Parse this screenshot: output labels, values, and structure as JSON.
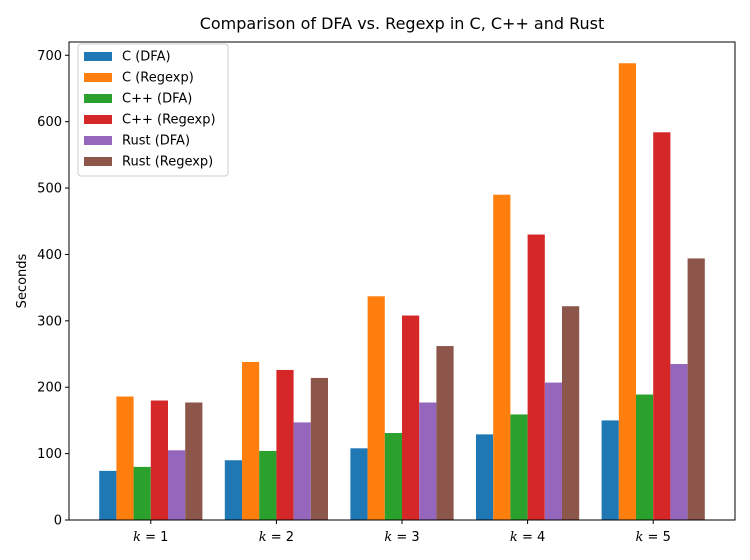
{
  "chart_data": {
    "type": "bar",
    "title": "Comparison of DFA vs. Regexp in C, C++ and Rust",
    "xlabel": "",
    "ylabel": "Seconds",
    "ylim": [
      0,
      720
    ],
    "yticks": [
      0,
      100,
      200,
      300,
      400,
      500,
      600,
      700
    ],
    "categories": [
      {
        "var": "k",
        "eq": " = 1"
      },
      {
        "var": "k",
        "eq": " = 2"
      },
      {
        "var": "k",
        "eq": " = 3"
      },
      {
        "var": "k",
        "eq": " = 4"
      },
      {
        "var": "k",
        "eq": " = 5"
      }
    ],
    "legend_position": "upper-left",
    "series": [
      {
        "name": "C (DFA)",
        "color": "#1f77b4",
        "values": [
          74,
          90,
          108,
          129,
          150
        ]
      },
      {
        "name": "C (Regexp)",
        "color": "#ff7f0e",
        "values": [
          186,
          238,
          337,
          490,
          688
        ]
      },
      {
        "name": "C++ (DFA)",
        "color": "#2ca02c",
        "values": [
          80,
          104,
          131,
          159,
          189
        ]
      },
      {
        "name": "C++ (Regexp)",
        "color": "#d62728",
        "values": [
          180,
          226,
          308,
          430,
          584
        ]
      },
      {
        "name": "Rust (DFA)",
        "color": "#9467bd",
        "values": [
          105,
          147,
          177,
          207,
          235
        ]
      },
      {
        "name": "Rust (Regexp)",
        "color": "#8c564b",
        "values": [
          177,
          214,
          262,
          322,
          394
        ]
      }
    ]
  }
}
